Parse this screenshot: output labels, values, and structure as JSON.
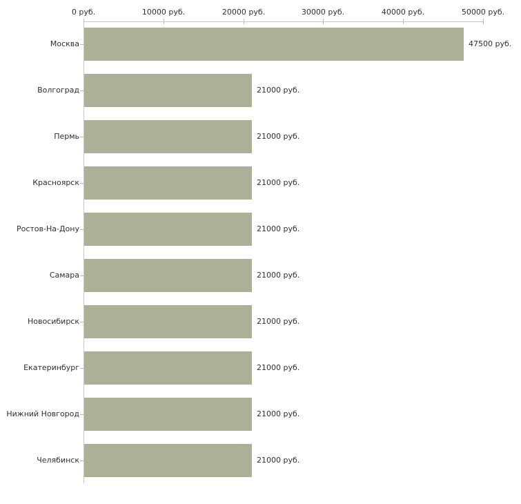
{
  "chart_data": {
    "type": "bar",
    "orientation": "horizontal",
    "title": "",
    "xlabel": "",
    "ylabel": "",
    "xlim": [
      0,
      50000
    ],
    "grid": false,
    "legend_position": "none",
    "x_tick_values": [
      0,
      10000,
      20000,
      30000,
      40000,
      50000
    ],
    "x_tick_labels": [
      "0 руб.",
      "10000 руб.",
      "20000 руб.",
      "30000 руб.",
      "40000 руб.",
      "50000 руб."
    ],
    "categories": [
      "Москва",
      "Волгоград",
      "Пермь",
      "Красноярск",
      "Ростов-На-Дону",
      "Самара",
      "Новосибирск",
      "Екатеринбург",
      "Нижний Новгород",
      "Челябинск"
    ],
    "values": [
      47500,
      21000,
      21000,
      21000,
      21000,
      21000,
      21000,
      21000,
      21000,
      21000
    ],
    "bar_value_labels": [
      "47500 руб.",
      "21000 руб.",
      "21000 руб.",
      "21000 руб.",
      "21000 руб.",
      "21000 руб.",
      "21000 руб.",
      "21000 руб.",
      "21000 руб.",
      "21000 руб."
    ]
  },
  "colors": {
    "background": "#ffffff",
    "bar": "#abb196",
    "axis_line": "#c6c6c6",
    "axis_tick": "#bcc19f",
    "category_tick": "#b8bd9e",
    "text": "#2e2e2e"
  }
}
